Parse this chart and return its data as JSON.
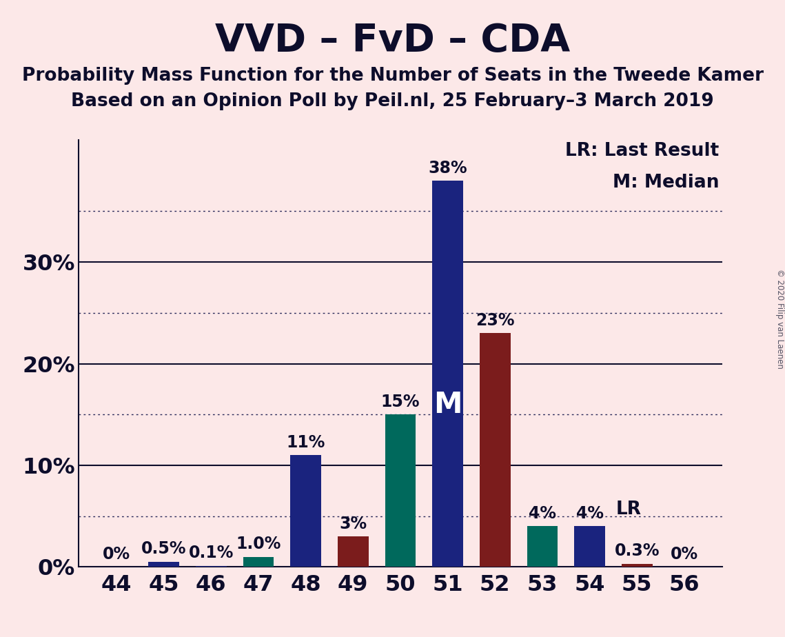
{
  "title": "VVD – FvD – CDA",
  "subtitle1": "Probability Mass Function for the Number of Seats in the Tweede Kamer",
  "subtitle2": "Based on an Opinion Poll by Peil.nl, 25 February–3 March 2019",
  "copyright": "© 2020 Filip van Laenen",
  "legend_text": "LR: Last Result\nM: Median",
  "lr_label": "LR",
  "median_label": "M",
  "background_color": "#fce8e8",
  "categories": [
    44,
    45,
    46,
    47,
    48,
    49,
    50,
    51,
    52,
    53,
    54,
    55,
    56
  ],
  "values": [
    0.0,
    0.5,
    0.1,
    1.0,
    11.0,
    3.0,
    15.0,
    38.0,
    23.0,
    4.0,
    4.0,
    0.3,
    0.0
  ],
  "bar_colors": [
    "#1a237e",
    "#1a237e",
    "#1a237e",
    "#00695c",
    "#1a237e",
    "#7b1c1c",
    "#00695c",
    "#1a237e",
    "#7b1c1c",
    "#00695c",
    "#1a237e",
    "#7b1c1c",
    "#1a237e"
  ],
  "labels": [
    "0%",
    "0.5%",
    "0.1%",
    "1.0%",
    "11%",
    "3%",
    "15%",
    "38%",
    "23%",
    "4%",
    "4%",
    "0.3%",
    "0%"
  ],
  "ylim": [
    0,
    42
  ],
  "shown_yticks": [
    0,
    10,
    20,
    30
  ],
  "shown_ytick_labels": [
    "0%",
    "10%",
    "20%",
    "30%"
  ],
  "grid_ticks": [
    5,
    15,
    25,
    35
  ],
  "solid_ticks": [
    10,
    20,
    30
  ],
  "median_seat": 51,
  "lr_seat": 54,
  "label_color": "#0d0d2b",
  "title_fontsize": 40,
  "subtitle_fontsize": 19,
  "label_fontsize": 17,
  "tick_fontsize": 23,
  "legend_fontsize": 19,
  "median_fontsize": 30,
  "lr_inline_fontsize": 19
}
